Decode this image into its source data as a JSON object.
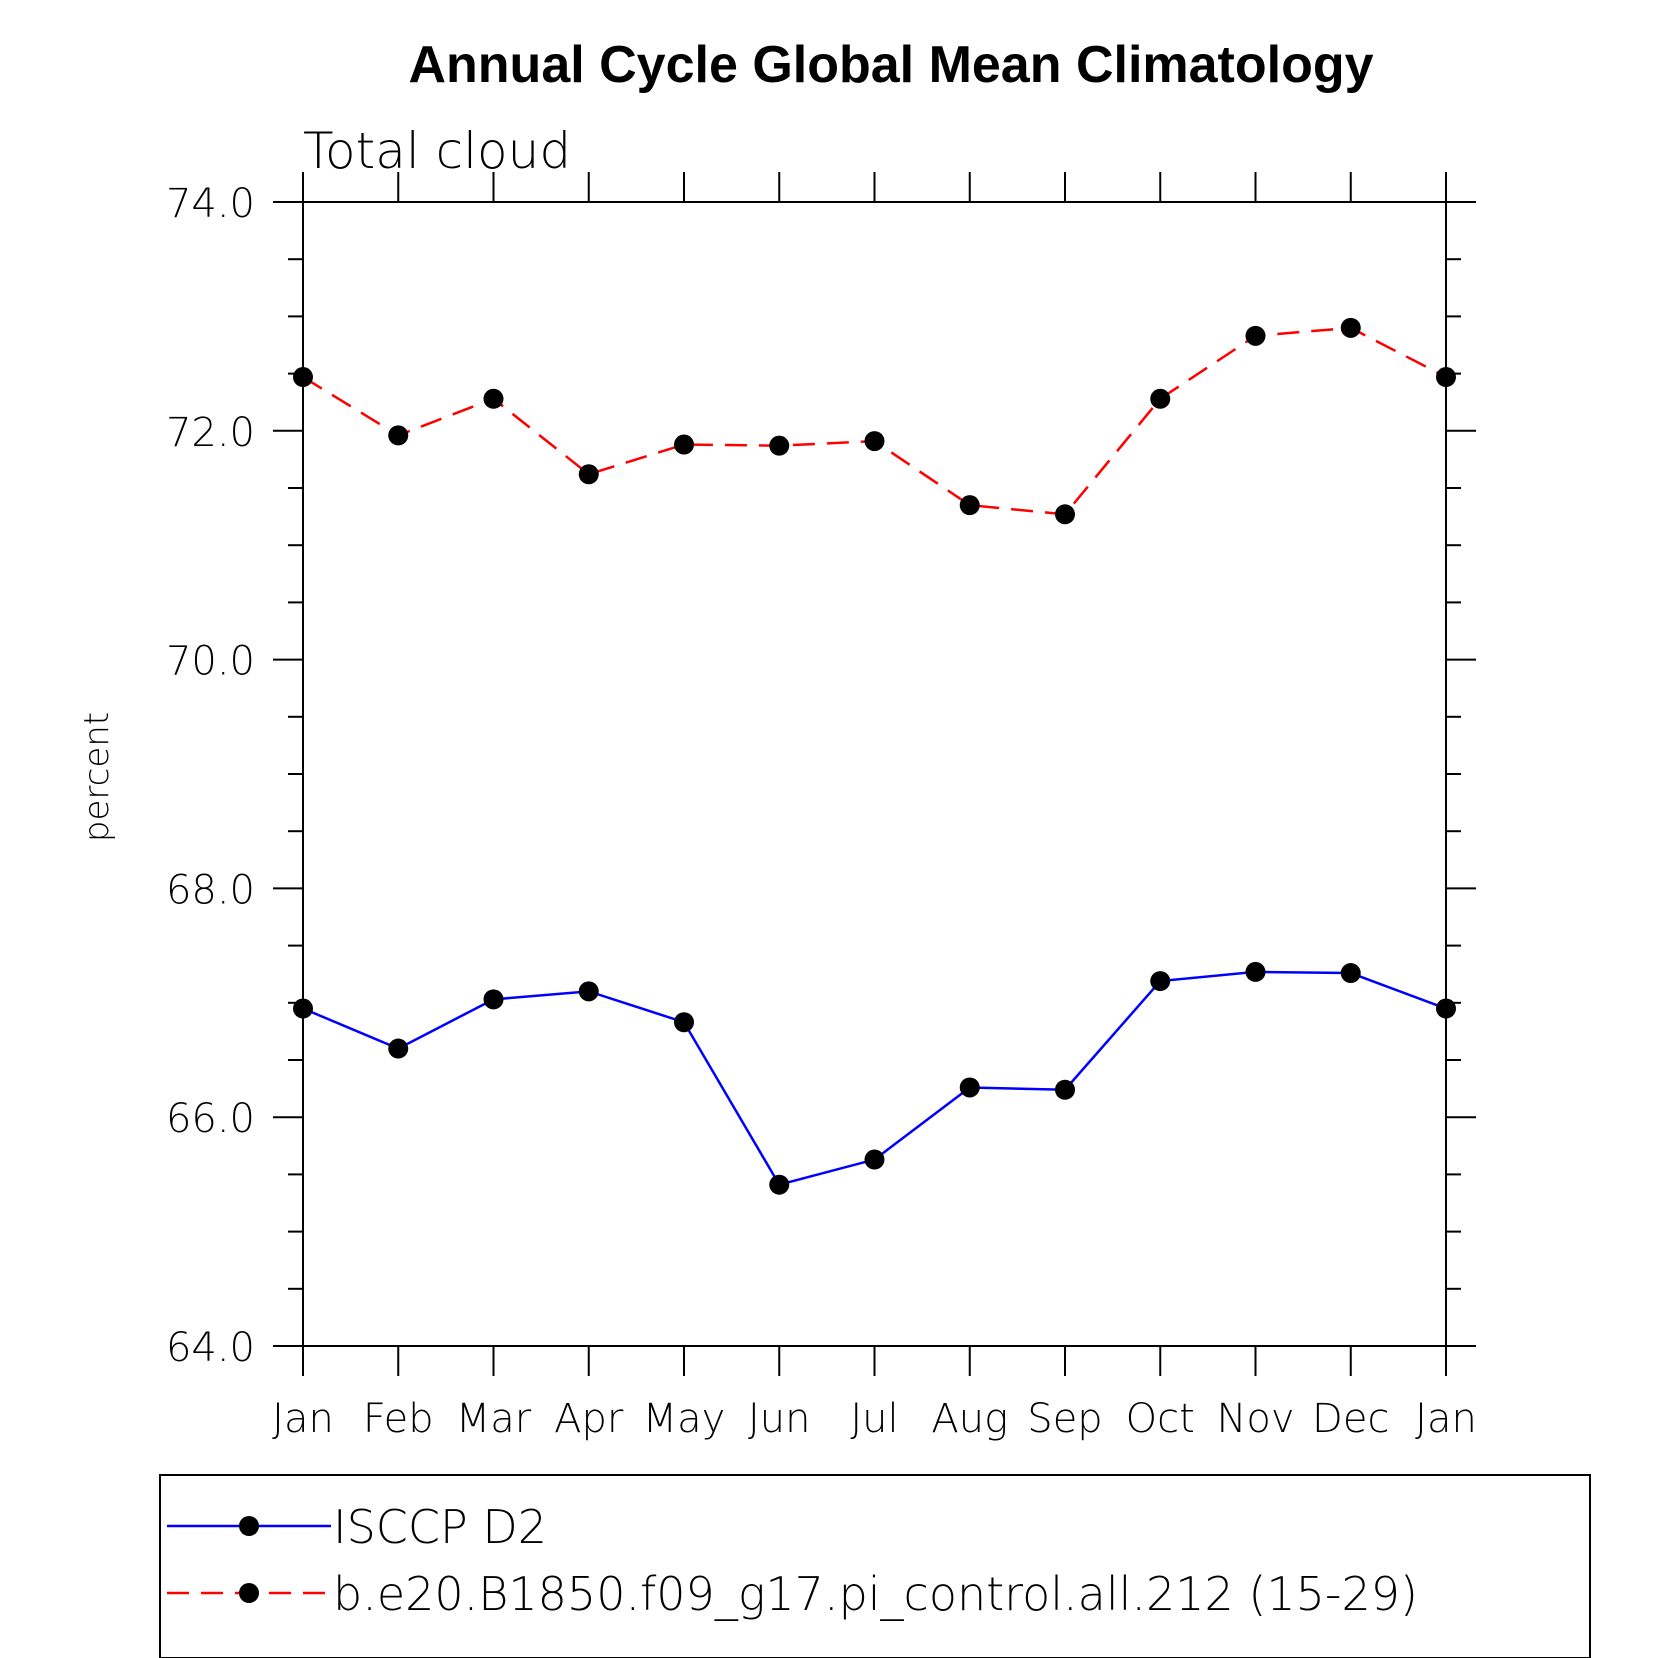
{
  "chart_data": {
    "type": "line",
    "title": "Annual Cycle Global Mean Climatology",
    "subtitle": "Total cloud",
    "ylabel": "percent",
    "xlabel": "",
    "categories": [
      "Jan",
      "Feb",
      "Mar",
      "Apr",
      "May",
      "Jun",
      "Jul",
      "Aug",
      "Sep",
      "Oct",
      "Nov",
      "Dec",
      "Jan"
    ],
    "ylim": [
      64.0,
      74.0
    ],
    "yticks": [
      "64.0",
      "66.0",
      "68.0",
      "70.0",
      "72.0",
      "74.0"
    ],
    "grid": false,
    "legend_position": "bottom",
    "series": [
      {
        "name": "ISCCP D2",
        "color": "#0000ff",
        "dash": "solid",
        "marker": "filled-circle",
        "values": [
          66.95,
          66.6,
          67.03,
          67.1,
          66.83,
          65.41,
          65.63,
          66.26,
          66.24,
          67.19,
          67.27,
          67.26,
          66.95
        ]
      },
      {
        "name": "b.e20.B1850.f09_g17.pi_control.all.212 (15-29)",
        "color": "#ff0000",
        "dash": "dashed",
        "marker": "filled-circle",
        "values": [
          72.47,
          71.96,
          72.28,
          71.62,
          71.88,
          71.87,
          71.91,
          71.35,
          71.27,
          72.28,
          72.83,
          72.9,
          72.47
        ]
      }
    ]
  }
}
